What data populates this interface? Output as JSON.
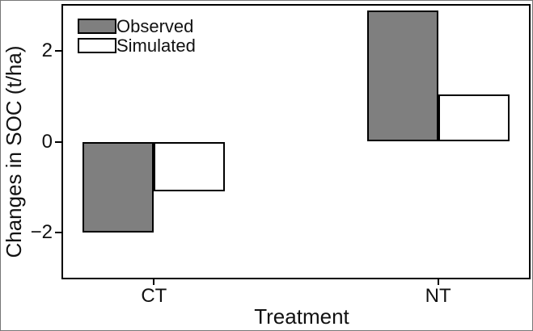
{
  "figure": {
    "background": "#ffffff",
    "frame_color": "#000000"
  },
  "chart_data": {
    "type": "bar",
    "title": "",
    "categories": [
      "CT",
      "NT"
    ],
    "series": [
      {
        "name": "Observed",
        "values": [
          -2.0,
          2.9
        ],
        "fill": "#7f7f7f"
      },
      {
        "name": "Simulated",
        "values": [
          -1.1,
          1.05
        ],
        "fill": "#ffffff"
      }
    ],
    "xlabel": "Treatment",
    "ylabel": "Changes in SOC (t/ha)",
    "ylim": [
      -3,
      3
    ],
    "yticks": [
      2,
      0,
      -2
    ],
    "ytick_labels": [
      "2",
      "0",
      "−2"
    ],
    "grid": false,
    "legend_position": "top-left",
    "bar_edge_color": "#000000"
  }
}
